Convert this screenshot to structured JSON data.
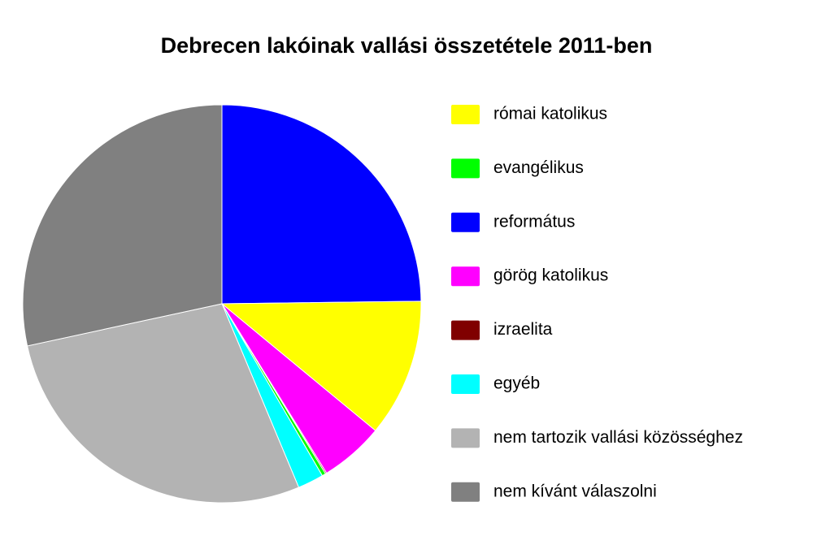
{
  "chart_data": {
    "type": "pie",
    "title": "Debrecen lakóinak vallási összetétele 2011-ben",
    "categories": [
      "római katolikus",
      "evangélikus",
      "református",
      "görög katolikus",
      "izraelita",
      "egyéb",
      "nem tartozik vallási közösséghez",
      "nem kívánt válaszolni"
    ],
    "values": [
      11.2,
      0.3,
      24.8,
      5.2,
      0.1,
      2.1,
      27.9,
      28.4
    ],
    "colors": [
      "#ffff00",
      "#00ff00",
      "#0000ff",
      "#ff00ff",
      "#800000",
      "#00ffff",
      "#b3b3b3",
      "#808080"
    ],
    "legend": "right"
  }
}
